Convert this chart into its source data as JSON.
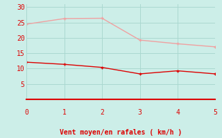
{
  "x": [
    0,
    1,
    2,
    3,
    4,
    5
  ],
  "y_rafales": [
    24.5,
    26.3,
    26.4,
    19.3,
    18.1,
    17.1
  ],
  "y_moyen": [
    12.1,
    11.4,
    10.4,
    8.3,
    9.3,
    8.3
  ],
  "line_color_rafales": "#f0a0a0",
  "line_color_moyen": "#dd0000",
  "bg_color": "#cceee8",
  "grid_color": "#aad8d0",
  "axis_color": "#dd0000",
  "tick_label_color": "#dd0000",
  "xlabel": "Vent moyen/en rafales ( km/h )",
  "xlabel_color": "#dd0000",
  "xlim": [
    0,
    5
  ],
  "ylim": [
    0,
    31
  ],
  "yticks": [
    5,
    10,
    15,
    20,
    25,
    30
  ],
  "xticks": [
    0,
    1,
    2,
    3,
    4,
    5
  ],
  "xlabel_fontsize": 7,
  "tick_fontsize": 7,
  "arrow_color": "#dd0000",
  "linewidth": 1.0,
  "markersize": 3
}
